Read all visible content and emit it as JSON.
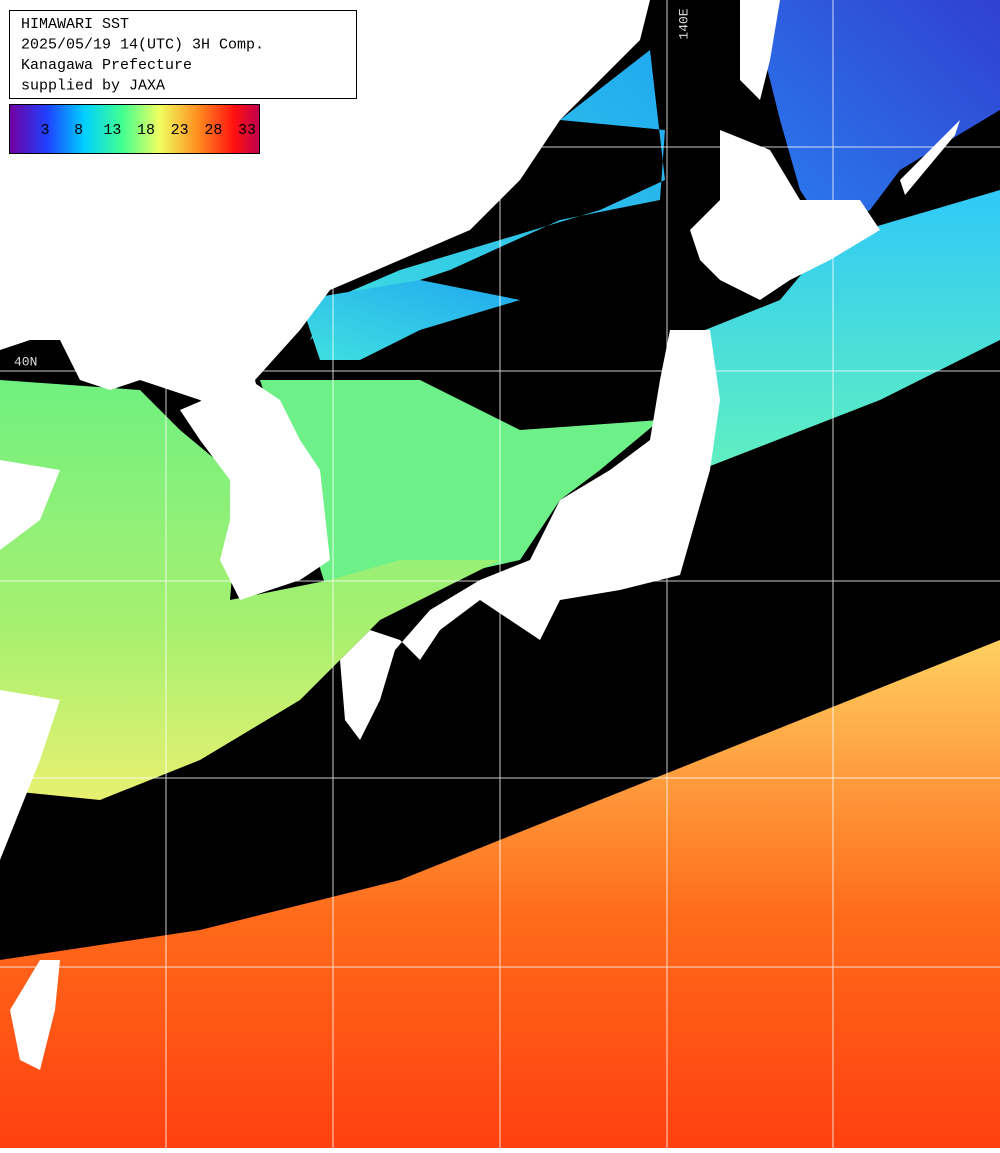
{
  "header": {
    "lines": [
      "HIMAWARI SST",
      "2025/05/19 14(UTC) 3H Comp.",
      "Kanagawa Prefecture",
      "supplied by JAXA"
    ]
  },
  "legend": {
    "labels": [
      "3",
      "8",
      "13",
      "18",
      "23",
      "28",
      "33"
    ]
  },
  "grid_labels": {
    "longitude": "140E",
    "latitude": "40N"
  }
}
